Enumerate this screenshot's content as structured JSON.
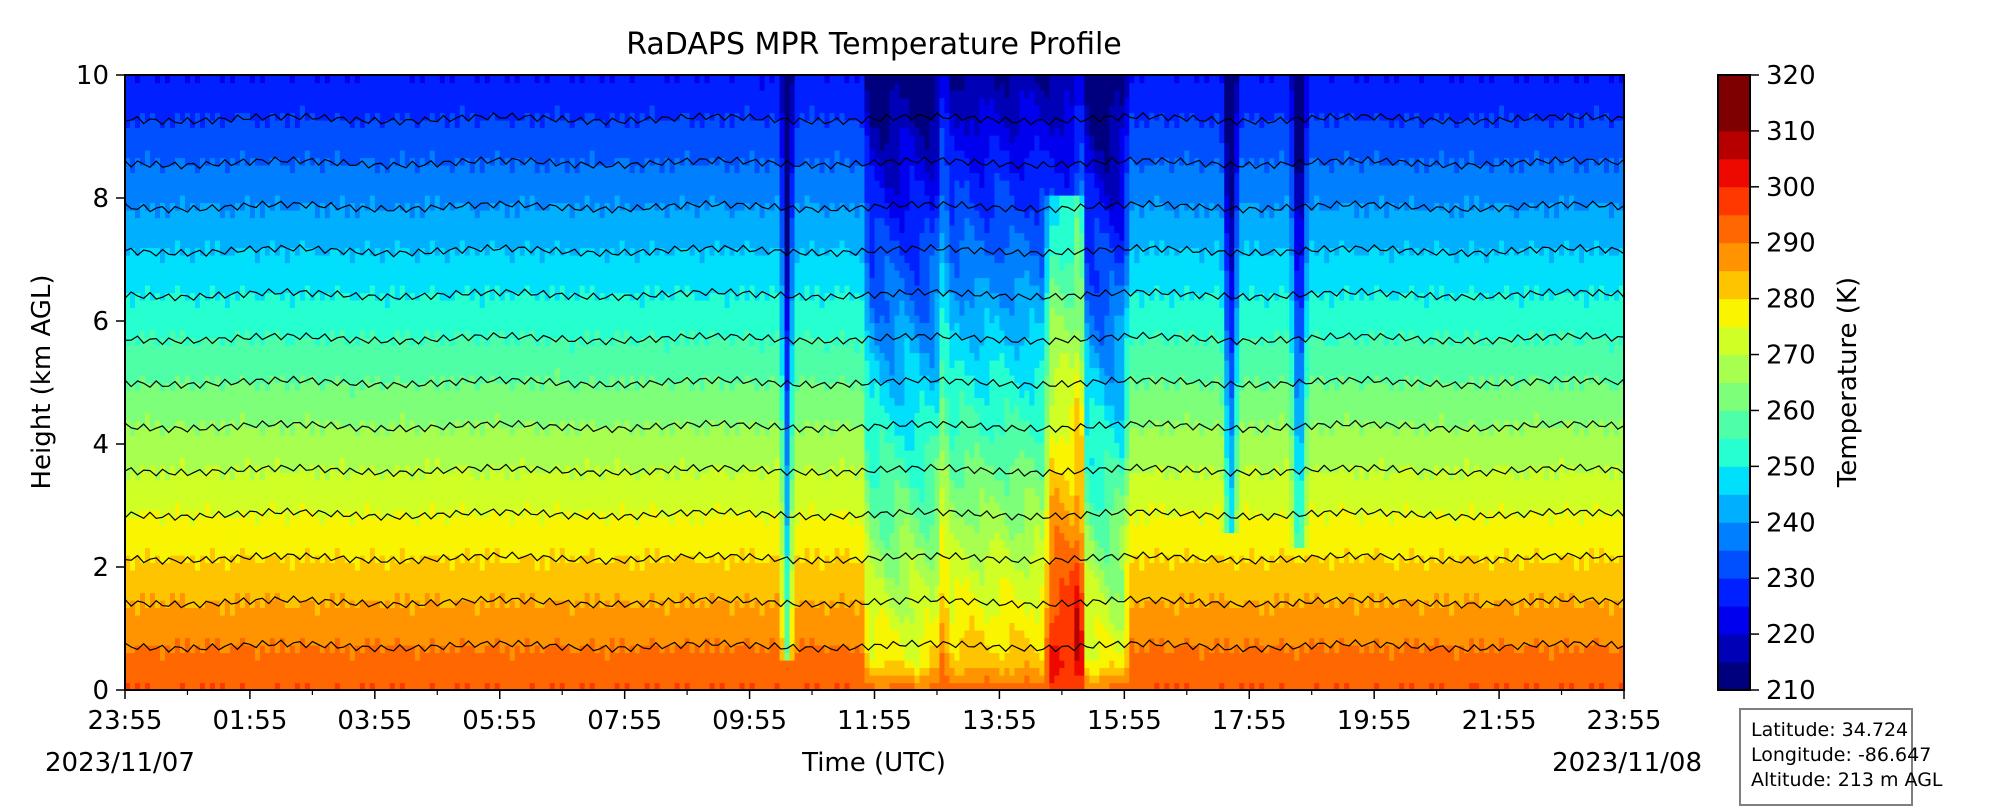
{
  "chart_data": {
    "type": "heatmap",
    "title": "RaDAPS MPR Temperature Profile",
    "xlabel": "Time (UTC)",
    "ylabel": "Height (km AGL)",
    "x_tick_labels": [
      "23:55",
      "01:55",
      "03:55",
      "05:55",
      "07:55",
      "09:55",
      "11:55",
      "13:55",
      "15:55",
      "17:55",
      "19:55",
      "21:55",
      "23:55"
    ],
    "x_range_hours": [
      0,
      24
    ],
    "date_start": "2023/11/07",
    "date_end": "2023/11/08",
    "y_ticks": [
      0,
      2,
      4,
      6,
      8,
      10
    ],
    "ylim": [
      0,
      10
    ],
    "colorbar": {
      "label": "Temperature (K)",
      "range": [
        210,
        320
      ],
      "ticks": [
        210,
        220,
        230,
        240,
        250,
        260,
        270,
        280,
        290,
        300,
        310,
        320
      ],
      "levels_step": 5,
      "colormap": [
        "#00007f",
        "#0000b6",
        "#0000ee",
        "#0020ff",
        "#0050ff",
        "#0080ff",
        "#00b0ff",
        "#00e0fc",
        "#26ffd0",
        "#4fffa7",
        "#7dff7a",
        "#a7ff50",
        "#d0ff26",
        "#f9f500",
        "#ffc400",
        "#ff9400",
        "#ff6700",
        "#ff3800",
        "#ee0900",
        "#b60000",
        "#7f0000",
        "#7f0000"
      ]
    },
    "profile": {
      "surface_temperature_k": 295,
      "lapse_rate_k_per_km": 7.0
    },
    "anomalies": [
      {
        "name": "spike",
        "center_h": 10.6,
        "width_h": 0.12,
        "amplitude_k": 30,
        "height_range_km": [
          0.5,
          10
        ]
      },
      {
        "name": "cold-block-1",
        "start_h": 11.8,
        "end_h": 13.1,
        "amplitude_k": 18,
        "top_km": 10
      },
      {
        "name": "cold-block-2",
        "start_h": 13.1,
        "end_h": 15.3,
        "amplitude_k": 12,
        "top_km": 10
      },
      {
        "name": "cold-block-3",
        "start_h": 15.3,
        "end_h": 16.1,
        "amplitude_k": 20,
        "top_km": 10
      },
      {
        "name": "warm-column",
        "start_h": 14.7,
        "end_h": 15.4,
        "amplitude_k": -25,
        "top_km": 8
      },
      {
        "name": "spike",
        "center_h": 17.7,
        "width_h": 0.15,
        "amplitude_k": 30,
        "height_range_km": [
          2.6,
          10
        ]
      },
      {
        "name": "spike",
        "center_h": 18.8,
        "width_h": 0.15,
        "amplitude_k": 28,
        "height_range_km": [
          2.3,
          10
        ]
      }
    ]
  },
  "info_box": {
    "latitude": "Latitude: 34.724",
    "longitude": "Longitude: -86.647",
    "altitude": "Altitude: 213 m AGL"
  }
}
